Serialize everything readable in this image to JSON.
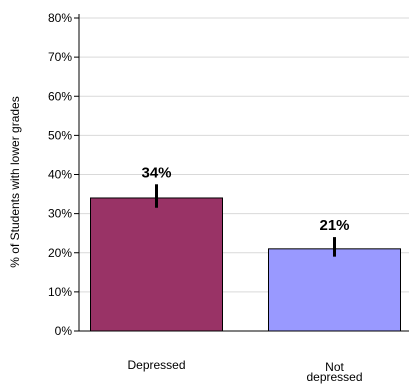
{
  "chart_data": {
    "type": "bar",
    "title": "",
    "xlabel": "",
    "ylabel": "% of Students with lower grades",
    "categories": [
      {
        "lines": [
          "Depressed"
        ]
      },
      {
        "lines": [
          "Not",
          "depressed"
        ]
      }
    ],
    "values": [
      34,
      21
    ],
    "value_labels": [
      "34%",
      "21%"
    ],
    "error_bars": [
      {
        "low": 31.5,
        "high": 37.5
      },
      {
        "low": 19,
        "high": 24
      }
    ],
    "colors": [
      "#993366",
      "#9999ff"
    ],
    "ylim": [
      0,
      80
    ],
    "yticks": [
      0,
      10,
      20,
      30,
      40,
      50,
      60,
      70,
      80
    ],
    "ytick_labels": [
      "0%",
      "10%",
      "20%",
      "30%",
      "40%",
      "50%",
      "60%",
      "70%",
      "80%"
    ],
    "grid": true,
    "grid_color": "#d9d9d9",
    "legend": false
  }
}
